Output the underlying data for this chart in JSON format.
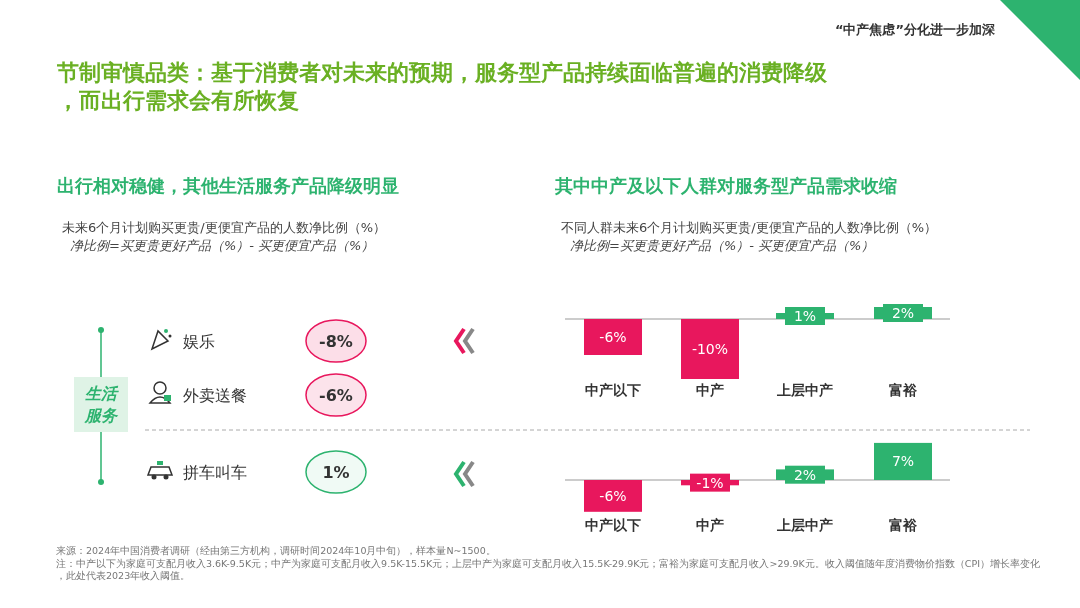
{
  "chart_data": [
    {
      "type": "other",
      "title": "节制审慎品类：基于消费者对未来的预期，服务型产品持续面临普遍的消费降级，而出行需求会有所恢复",
      "subtitle": "“中产焦虑”分化进一步加深",
      "annotations": [
        "来源：2024年中国消费者调研（经由第三方机构，调研时间2024年10月中旬），样本量N~1500。",
        "注：中产以下为家庭可支配月收入3.6K-9.5K元；中产为家庭可支配月收入9.5K-15.5K元；上层中产为家庭可支配月收入15.5K-29.9K元；富裕为家庭可支配月收入>29.9K元。收入阈值随年度消费物价指数（CPI）增长率变化，此处代表2023年收入阈值。"
      ]
    },
    {
      "type": "other",
      "title": "出行相对稳健，其他生活服务产品降级明显",
      "subtitle": "未来6个月计划购买更贵/更便宜产品的人数净比例（%）",
      "categories": [
        "娱乐",
        "外卖送餐",
        "拼车叫车"
      ],
      "values": [
        -8,
        -6,
        1
      ],
      "value_labels": [
        "-8%",
        "-6%",
        "1%"
      ],
      "colors": [
        "#e8175d",
        "#e8175d",
        "#2db36f"
      ],
      "annotations": [
        "净比例=买更贵更好产品（%）- 买更便宜产品（%）",
        "生活服务"
      ]
    },
    {
      "type": "bar",
      "title": "其中中产及以下人群对服务型产品需求收缩",
      "subtitle": "不同人群未来6个月计划购买更贵/更便宜产品的人数净比例（%）",
      "annotations": [
        "净比例=买更贵更好产品（%）- 买更便宜产品（%）"
      ],
      "categories": [
        "中产以下",
        "中产",
        "上层中产",
        "富裕"
      ],
      "values": [
        -6,
        -10,
        1,
        2
      ],
      "value_labels": [
        "-6%",
        "-10%",
        "1%",
        "2%"
      ],
      "colors": [
        "#e8175d",
        "#e8175d",
        "#2db36f",
        "#2db36f"
      ]
    },
    {
      "type": "bar",
      "categories": [
        "中产以下",
        "中产",
        "上层中产",
        "富裕"
      ],
      "values": [
        -6,
        -1,
        2,
        7
      ],
      "value_labels": [
        "-6%",
        "-1%",
        "2%",
        "7%"
      ],
      "colors": [
        "#e8175d",
        "#e8175d",
        "#2db36f",
        "#2db36f"
      ]
    }
  ]
}
